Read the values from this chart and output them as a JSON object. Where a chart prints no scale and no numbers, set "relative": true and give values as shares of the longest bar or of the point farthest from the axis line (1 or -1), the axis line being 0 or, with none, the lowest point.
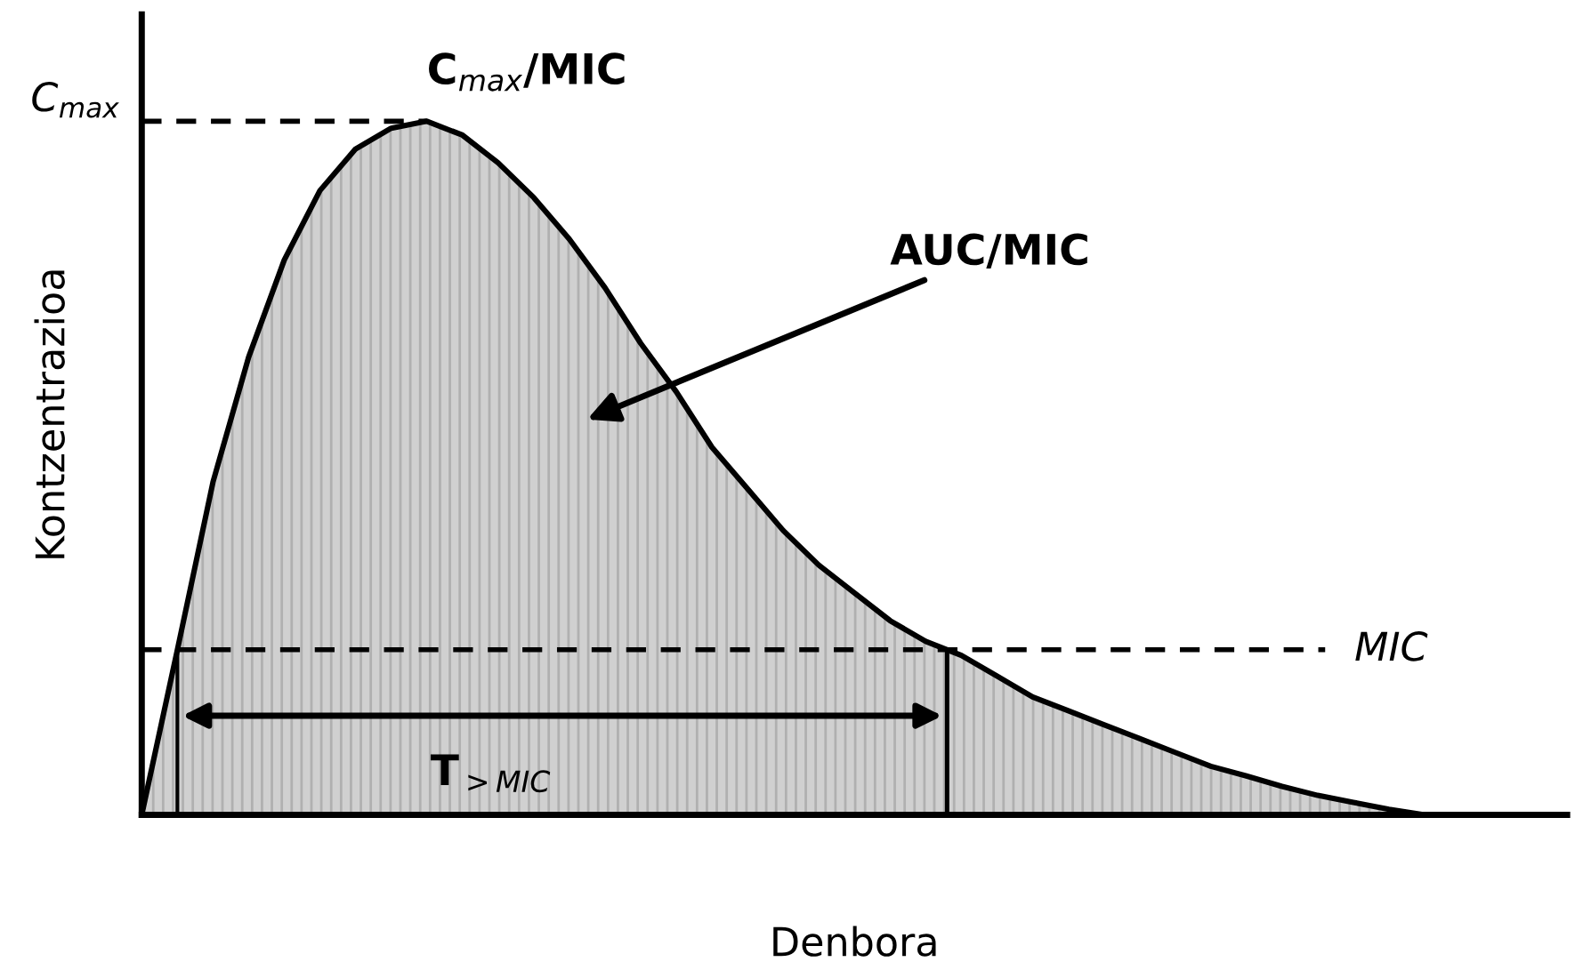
{
  "chart_data": {
    "type": "area",
    "relative": true,
    "xlabel": "Denbora",
    "ylabel": "Kontzentrazioa",
    "categories": [
      null,
      null,
      null,
      null,
      null,
      null,
      null,
      null,
      null,
      null,
      null,
      null,
      null,
      null,
      null,
      null,
      null,
      null,
      null,
      null,
      null,
      null,
      null,
      null,
      null,
      null,
      null,
      null,
      null,
      null,
      null,
      null,
      null,
      null,
      null,
      null,
      null,
      null,
      null,
      null,
      null
    ],
    "series": [
      {
        "color": "#d0d0d0",
        "values": [
          0,
          0.238,
          0.48,
          0.66,
          0.8,
          0.9,
          0.96,
          0.99,
          1.0,
          0.98,
          0.94,
          0.89,
          0.83,
          0.76,
          0.68,
          0.61,
          0.53,
          0.47,
          0.41,
          0.36,
          0.32,
          0.28,
          0.25,
          0.23,
          0.2,
          0.17,
          0.15,
          0.13,
          0.11,
          0.09,
          0.07,
          0.056,
          0.041,
          0.028,
          0.018,
          0.008,
          0,
          0,
          0,
          0,
          0
        ]
      }
    ],
    "ref_lines": [
      {
        "axis": "y",
        "value": 1.0,
        "label": "C$_{max}$",
        "line_style": "dashed"
      },
      {
        "axis": "y",
        "value": 0.238,
        "label": "MIC",
        "line_style": "dashed"
      }
    ],
    "annotations": [
      "C$_{max}$/MIC",
      "AUC/MIC",
      "T$_{>MIC}$"
    ]
  }
}
